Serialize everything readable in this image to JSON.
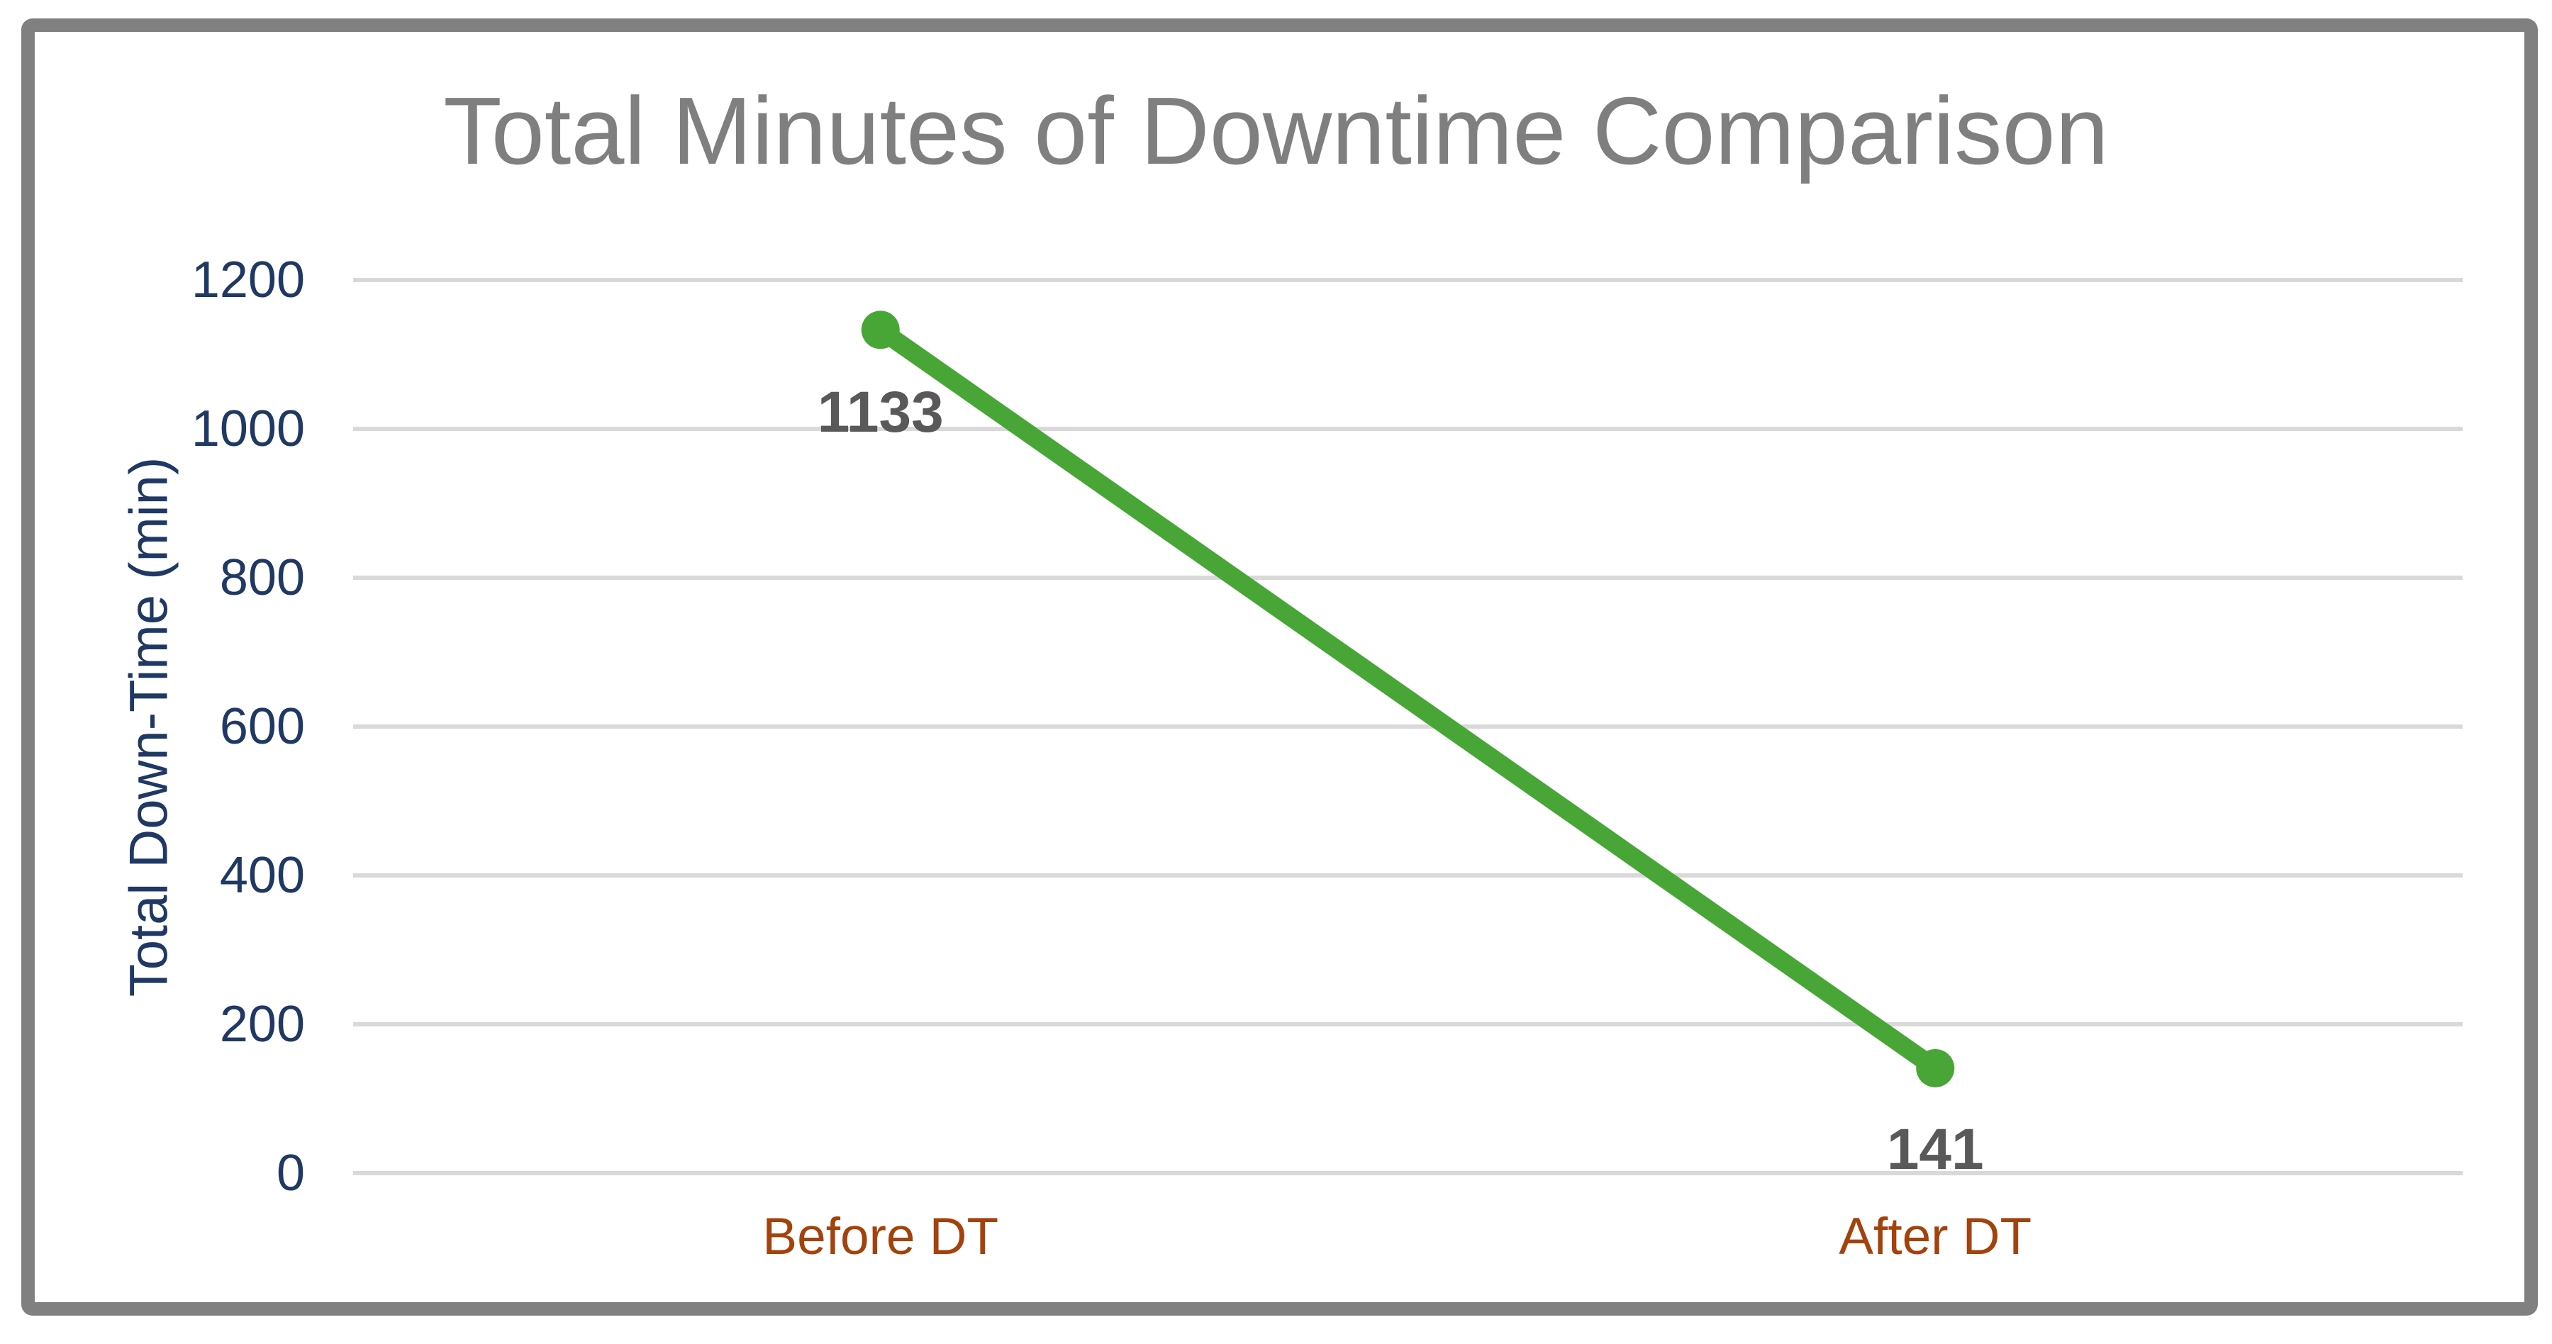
{
  "chart_data": {
    "type": "line",
    "title": "Total Minutes of Downtime Comparison",
    "categories": [
      "Before DT",
      "After DT"
    ],
    "values": [
      1133,
      141
    ],
    "data_labels": [
      "1133",
      "141"
    ],
    "xlabel": "",
    "ylabel": "Total Down-Time (min)",
    "yticks": [
      0,
      200,
      400,
      600,
      800,
      1000,
      1200
    ],
    "ylim": [
      0,
      1200
    ],
    "grid": "horizontal-only",
    "legend": "none",
    "marker": "circle",
    "colors": {
      "series_line": "#48A637",
      "marker_fill": "#48A637",
      "title_text": "#7F7F7F",
      "axis_tick_text": "#1F3864",
      "axis_title_text": "#1F3864",
      "category_text": "#A2430D",
      "data_label_text": "#595959",
      "gridline": "#D9D9D9",
      "frame_border": "#808080",
      "background": "#FFFFFF"
    }
  }
}
